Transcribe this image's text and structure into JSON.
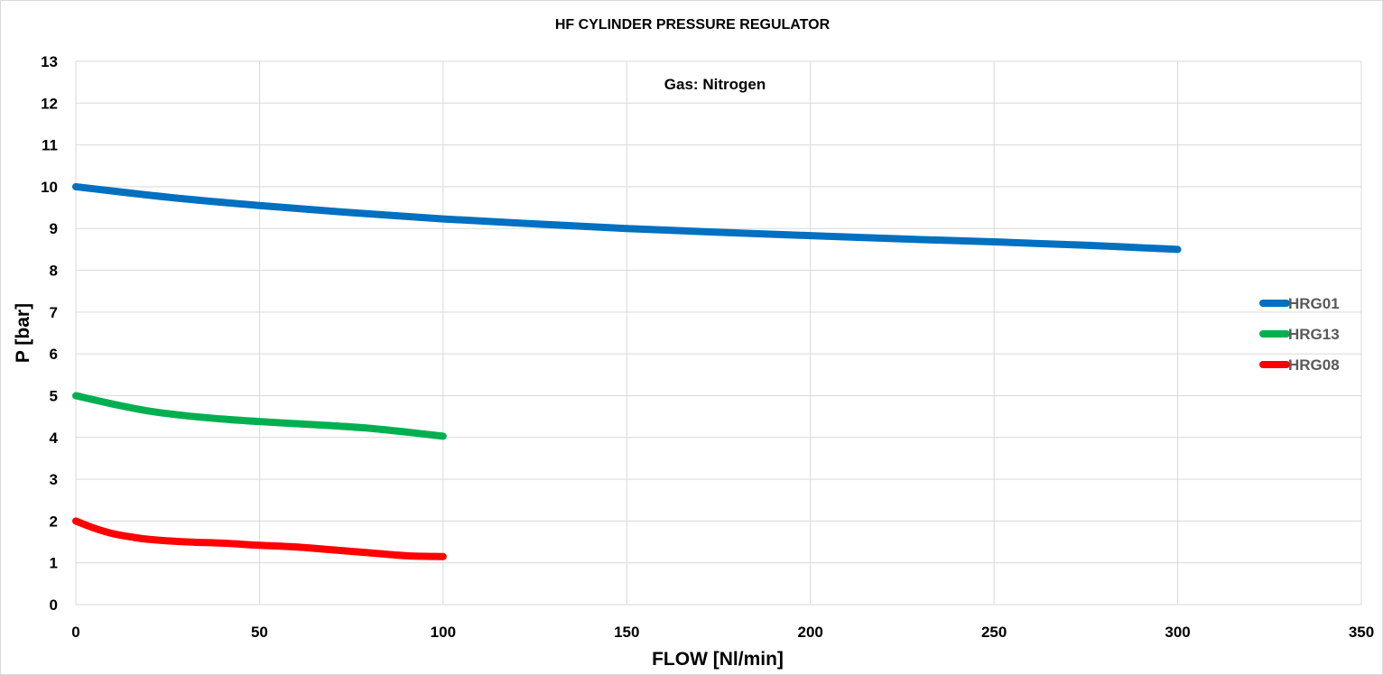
{
  "chart_data": {
    "type": "line",
    "title": "HF CYLINDER PRESSURE REGULATOR",
    "annotation": "Gas: Nitrogen",
    "xlabel": "FLOW [Nl/min]",
    "ylabel": "P [bar]",
    "xlim": [
      0,
      350
    ],
    "ylim": [
      0,
      13
    ],
    "xticks": [
      0,
      50,
      100,
      150,
      200,
      250,
      300,
      350
    ],
    "yticks": [
      0,
      1,
      2,
      3,
      4,
      5,
      6,
      7,
      8,
      9,
      10,
      11,
      12,
      13
    ],
    "grid": true,
    "legend_position": "right",
    "series": [
      {
        "name": "HRG01",
        "color": "#0070c0",
        "x": [
          0,
          25,
          50,
          75,
          100,
          125,
          150,
          175,
          200,
          225,
          250,
          275,
          300
        ],
        "y": [
          10.0,
          9.75,
          9.55,
          9.38,
          9.23,
          9.11,
          9.0,
          8.91,
          8.83,
          8.75,
          8.68,
          8.6,
          8.5
        ]
      },
      {
        "name": "HRG13",
        "color": "#00b050",
        "x": [
          0,
          10,
          20,
          30,
          40,
          50,
          60,
          70,
          80,
          90,
          100
        ],
        "y": [
          5.0,
          4.8,
          4.63,
          4.52,
          4.44,
          4.38,
          4.33,
          4.28,
          4.22,
          4.13,
          4.03
        ]
      },
      {
        "name": "HRG08",
        "color": "#ff0000",
        "x": [
          0,
          5,
          10,
          15,
          20,
          30,
          40,
          50,
          60,
          70,
          80,
          90,
          100
        ],
        "y": [
          2.0,
          1.83,
          1.7,
          1.62,
          1.56,
          1.5,
          1.47,
          1.42,
          1.38,
          1.31,
          1.24,
          1.17,
          1.15
        ]
      }
    ]
  }
}
